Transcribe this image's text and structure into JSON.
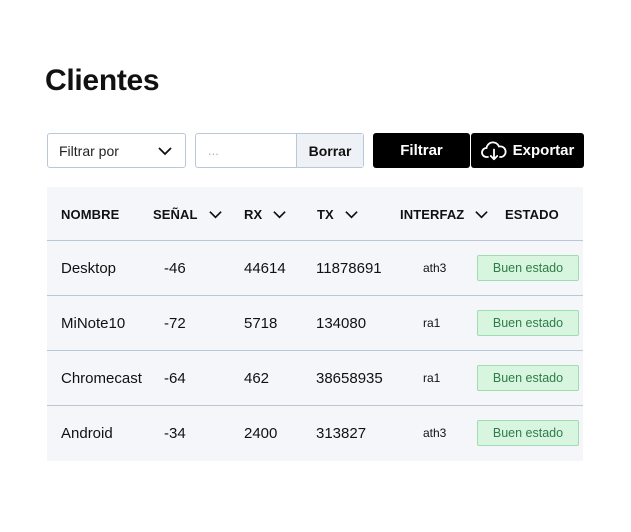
{
  "page": {
    "title": "Clientes"
  },
  "toolbar": {
    "filter_select": "Filtrar por",
    "search_placeholder": "...",
    "clear_label": "Borrar",
    "filter_label": "Filtrar",
    "export_label": "Exportar"
  },
  "table": {
    "columns": [
      "NOMBRE",
      "SEÑAL",
      "RX",
      "TX",
      "INTERFAZ",
      "ESTADO"
    ],
    "rows": [
      {
        "nombre": "Desktop",
        "senal": "-46",
        "rx": "44614",
        "tx": "11878691",
        "interfaz": "ath3",
        "estado": "Buen estado"
      },
      {
        "nombre": "MiNote10",
        "senal": "-72",
        "rx": "5718",
        "tx": "134080",
        "interfaz": "ra1",
        "estado": "Buen estado"
      },
      {
        "nombre": "Chromecast",
        "senal": "-64",
        "rx": "462",
        "tx": "38658935",
        "interfaz": "ra1",
        "estado": "Buen estado"
      },
      {
        "nombre": "Android",
        "senal": "-34",
        "rx": "2400",
        "tx": "313827",
        "interfaz": "ath3",
        "estado": "Buen estado"
      }
    ]
  },
  "icons": {
    "dropdown": "chevron-down-icon",
    "export": "cloud-download-icon",
    "sort": "chevron-down-icon"
  },
  "colors": {
    "primary": "#000000",
    "badge_bg": "#d8f5df",
    "badge_border": "#9fdcb0",
    "badge_text": "#2e7d48",
    "table_bg": "#f4f6f9",
    "border": "#b9c7d9"
  }
}
